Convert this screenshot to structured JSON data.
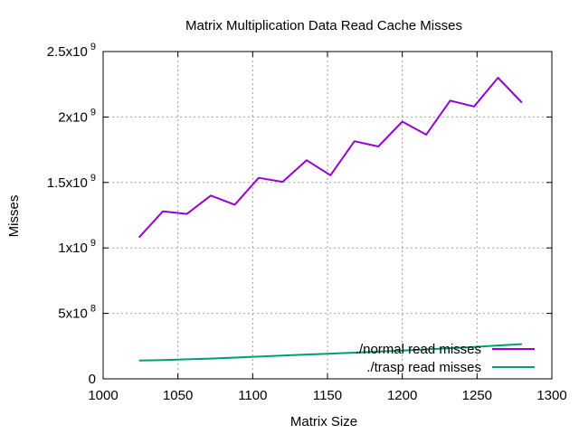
{
  "chart_data": {
    "type": "line",
    "title": "Matrix Multiplication Data Read Cache Misses",
    "xlabel": "Matrix Size",
    "ylabel": "Misses",
    "xlim": [
      1000,
      1300
    ],
    "ylim": [
      0,
      2500000000
    ],
    "grid": true,
    "legend_position": "bottom-right",
    "x_ticks": [
      {
        "value": 1000,
        "label": "1000"
      },
      {
        "value": 1050,
        "label": "1050"
      },
      {
        "value": 1100,
        "label": "1100"
      },
      {
        "value": 1150,
        "label": "1150"
      },
      {
        "value": 1200,
        "label": "1200"
      },
      {
        "value": 1250,
        "label": "1250"
      },
      {
        "value": 1300,
        "label": "1300"
      }
    ],
    "y_ticks": [
      {
        "value": 0,
        "mantissa": "0",
        "exponent": ""
      },
      {
        "value": 500000000,
        "mantissa": "5x10",
        "exponent": "8"
      },
      {
        "value": 1000000000,
        "mantissa": "1x10",
        "exponent": "9"
      },
      {
        "value": 1500000000,
        "mantissa": "1.5x10",
        "exponent": "9"
      },
      {
        "value": 2000000000,
        "mantissa": "2x10",
        "exponent": "9"
      },
      {
        "value": 2500000000,
        "mantissa": "2.5x10",
        "exponent": "9"
      }
    ],
    "x": [
      1024,
      1040,
      1056,
      1072,
      1088,
      1104,
      1120,
      1136,
      1152,
      1168,
      1184,
      1200,
      1216,
      1232,
      1248,
      1264,
      1280
    ],
    "series": [
      {
        "name": "./normal read misses",
        "color": "#9400d3",
        "values": [
          1080000000,
          1280000000,
          1260000000,
          1400000000,
          1330000000,
          1535000000,
          1505000000,
          1670000000,
          1555000000,
          1815000000,
          1775000000,
          1965000000,
          1865000000,
          2125000000,
          2080000000,
          2300000000,
          2110000000
        ]
      },
      {
        "name": "./trasp read misses",
        "color": "#009e73",
        "values": [
          140000000,
          143000000,
          149000000,
          155000000,
          162000000,
          170000000,
          178000000,
          186000000,
          193000000,
          200000000,
          208000000,
          216000000,
          225000000,
          234000000,
          243000000,
          255000000,
          265000000
        ]
      }
    ]
  }
}
